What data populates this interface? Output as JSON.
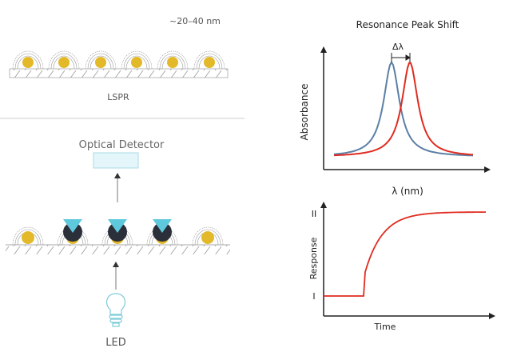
{
  "top_panel": {
    "size_label": "~20–40 nm",
    "caption": "LSPR"
  },
  "bottom_panel": {
    "detector_label": "Optical Detector",
    "source_label": "LED"
  },
  "peak_chart": {
    "title": "Resonance Peak Shift",
    "ylabel": "Absorbance",
    "xlabel": "λ (nm)",
    "shift_label": "Δλ"
  },
  "response_chart": {
    "ylabel": "Response",
    "xlabel": "Time",
    "level_high": "II",
    "level_low": "I"
  },
  "colors": {
    "gold": "#e3b92a",
    "analyte": "#2b2f3a",
    "receptor": "#5ec8dc",
    "before": "#5b7fa6",
    "after": "#e02b20",
    "detector": "#e4f6fa"
  }
}
